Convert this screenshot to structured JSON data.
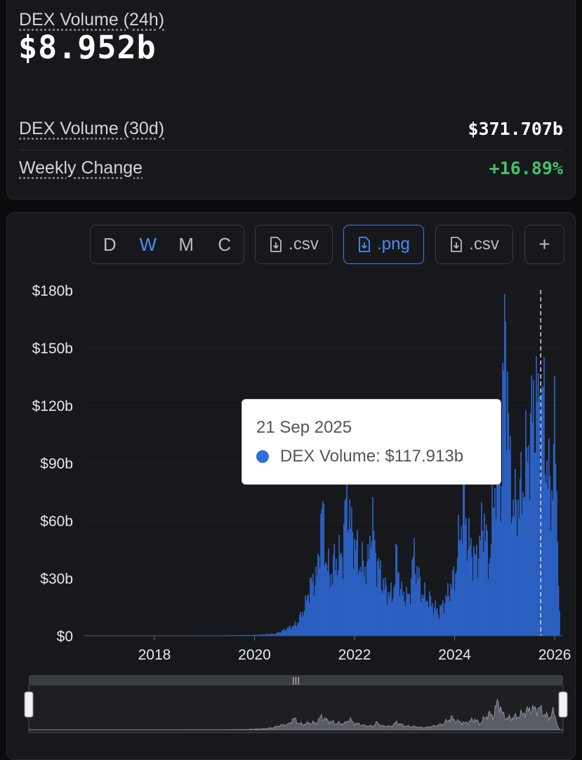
{
  "stats": {
    "volume_24h_label": "DEX Volume (24h)",
    "volume_24h_value": "$8.952b",
    "volume_30d_label": "DEX Volume (30d)",
    "volume_30d_value": "$371.707b",
    "weekly_change_label": "Weekly Change",
    "weekly_change_value": "+16.89%"
  },
  "toolbar": {
    "periods": [
      "D",
      "W",
      "M",
      "C"
    ],
    "selected_period": "W",
    "csv_label_1": ".csv",
    "png_label": ".png",
    "csv_label_2": ".csv",
    "add_label": "+"
  },
  "tooltip": {
    "date": "21 Sep 2025",
    "series_label": "DEX Volume: $117.913b"
  },
  "colors": {
    "series": "#2b5fc0",
    "accent": "#3f7ff0",
    "positive": "#3fc46a",
    "navigator": "#5a5d66"
  },
  "chart_data": {
    "type": "bar",
    "series": [
      {
        "name": "DEX Volume"
      }
    ],
    "x_ticks": [
      "2018",
      "2020",
      "2022",
      "2024",
      "2026"
    ],
    "y_ticks": [
      "$0",
      "$30b",
      "$60b",
      "$90b",
      "$120b",
      "$150b",
      "$180b"
    ],
    "ylim": [
      0,
      180
    ],
    "xlim": [
      "2016-08",
      "2026-03"
    ],
    "grid": true,
    "crosshair_date": "2025-09-21",
    "weekly_points": [
      [
        "2016-08",
        0
      ],
      [
        "2018-01",
        0
      ],
      [
        "2019-06",
        0.2
      ],
      [
        "2020-01",
        0.4
      ],
      [
        "2020-06",
        1
      ],
      [
        "2020-09",
        4
      ],
      [
        "2020-11",
        6
      ],
      [
        "2021-01",
        15
      ],
      [
        "2021-02",
        25
      ],
      [
        "2021-04",
        32
      ],
      [
        "2021-05",
        68
      ],
      [
        "2021-06",
        40
      ],
      [
        "2021-07",
        30
      ],
      [
        "2021-08",
        38
      ],
      [
        "2021-10",
        42
      ],
      [
        "2021-11",
        78
      ],
      [
        "2021-12",
        55
      ],
      [
        "2022-01",
        48
      ],
      [
        "2022-02",
        38
      ],
      [
        "2022-04",
        35
      ],
      [
        "2022-05",
        62
      ],
      [
        "2022-06",
        40
      ],
      [
        "2022-08",
        25
      ],
      [
        "2022-10",
        20
      ],
      [
        "2022-11",
        42
      ],
      [
        "2022-12",
        22
      ],
      [
        "2023-02",
        20
      ],
      [
        "2023-03",
        42
      ],
      [
        "2023-05",
        22
      ],
      [
        "2023-07",
        18
      ],
      [
        "2023-09",
        12
      ],
      [
        "2023-11",
        20
      ],
      [
        "2024-01",
        32
      ],
      [
        "2024-03",
        70
      ],
      [
        "2024-04",
        50
      ],
      [
        "2024-06",
        38
      ],
      [
        "2024-08",
        62
      ],
      [
        "2024-09",
        35
      ],
      [
        "2024-11",
        92
      ],
      [
        "2024-12",
        78
      ],
      [
        "2025-01",
        172
      ],
      [
        "2025-02",
        90
      ],
      [
        "2025-03",
        65
      ],
      [
        "2025-05",
        75
      ],
      [
        "2025-07",
        105
      ],
      [
        "2025-08",
        122
      ],
      [
        "2025-09",
        118
      ],
      [
        "2025-10",
        125
      ],
      [
        "2025-11",
        88
      ],
      [
        "2025-12",
        70
      ],
      [
        "2026-01",
        108
      ],
      [
        "2026-02",
        10
      ]
    ]
  }
}
